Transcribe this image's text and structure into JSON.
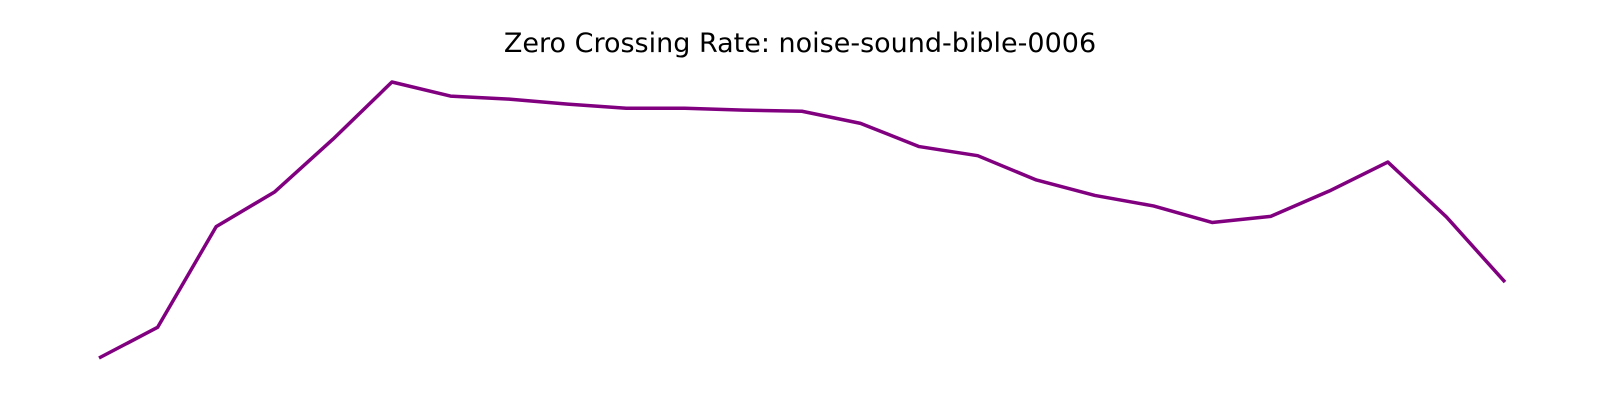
{
  "chart_data": {
    "type": "line",
    "title": "Zero Crossing Rate: noise-sound-bible-0006",
    "xlabel": "",
    "ylabel": "",
    "axes_visible": false,
    "grid": false,
    "legend": "none",
    "series": [
      {
        "color": "#800080",
        "x": [
          0,
          1,
          2,
          3,
          4,
          5,
          6,
          7,
          8,
          9,
          10,
          11,
          12,
          13,
          14,
          15,
          16,
          17,
          18,
          19,
          20,
          21,
          22,
          23,
          24
        ],
        "values": [
          0.0,
          0.111,
          0.476,
          0.602,
          0.794,
          1.0,
          0.949,
          0.938,
          0.92,
          0.905,
          0.905,
          0.898,
          0.894,
          0.85,
          0.766,
          0.733,
          0.645,
          0.589,
          0.551,
          0.491,
          0.513,
          0.605,
          0.71,
          0.511,
          0.275
        ]
      }
    ],
    "xlim": [
      0,
      24
    ],
    "ylim": [
      0,
      1
    ]
  }
}
